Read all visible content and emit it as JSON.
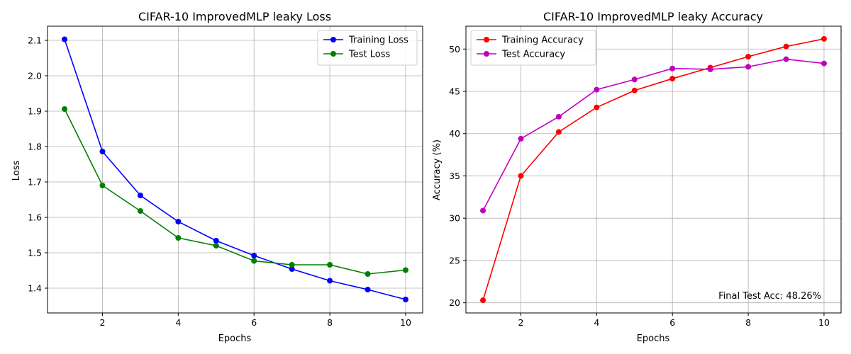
{
  "chart_data": [
    {
      "type": "line",
      "title": "CIFAR-10 ImprovedMLP leaky Loss",
      "xlabel": "Epochs",
      "ylabel": "Loss",
      "x": [
        1,
        2,
        3,
        4,
        5,
        6,
        7,
        8,
        9,
        10
      ],
      "xlim": [
        0.55,
        10.45
      ],
      "ylim": [
        1.33,
        2.14
      ],
      "xticks": [
        2,
        4,
        6,
        8,
        10
      ],
      "yticks": [
        1.4,
        1.5,
        1.6,
        1.7,
        1.8,
        1.9,
        2.0,
        2.1
      ],
      "xtick_labels": [
        "2",
        "4",
        "6",
        "8",
        "10"
      ],
      "ytick_labels": [
        "1.4",
        "1.5",
        "1.6",
        "1.7",
        "1.8",
        "1.9",
        "2.0",
        "2.1"
      ],
      "grid": true,
      "legend_position": "top-right",
      "series": [
        {
          "name": "Training Loss",
          "color": "#0000ff",
          "values": [
            2.103,
            1.786,
            1.662,
            1.588,
            1.534,
            1.492,
            1.454,
            1.421,
            1.396,
            1.368
          ]
        },
        {
          "name": "Test Loss",
          "color": "#008000",
          "values": [
            1.906,
            1.69,
            1.618,
            1.542,
            1.52,
            1.477,
            1.466,
            1.466,
            1.44,
            1.451
          ]
        }
      ],
      "annotation": ""
    },
    {
      "type": "line",
      "title": "CIFAR-10 ImprovedMLP leaky Accuracy",
      "xlabel": "Epochs",
      "ylabel": "Accuracy (%)",
      "x": [
        1,
        2,
        3,
        4,
        5,
        6,
        7,
        8,
        9,
        10
      ],
      "xlim": [
        0.55,
        10.45
      ],
      "ylim": [
        18.8,
        52.7
      ],
      "xticks": [
        2,
        4,
        6,
        8,
        10
      ],
      "yticks": [
        20,
        25,
        30,
        35,
        40,
        45,
        50
      ],
      "xtick_labels": [
        "2",
        "4",
        "6",
        "8",
        "10"
      ],
      "ytick_labels": [
        "20",
        "25",
        "30",
        "35",
        "40",
        "45",
        "50"
      ],
      "grid": true,
      "legend_position": "top-left",
      "series": [
        {
          "name": "Training Accuracy",
          "color": "#ff0000",
          "values": [
            20.3,
            35.0,
            40.2,
            43.1,
            45.1,
            46.5,
            47.8,
            49.1,
            50.3,
            51.2
          ]
        },
        {
          "name": "Test Accuracy",
          "color": "#bf00bf",
          "values": [
            30.9,
            39.4,
            42.0,
            45.2,
            46.4,
            47.7,
            47.6,
            47.9,
            48.8,
            48.3
          ]
        }
      ],
      "annotation": "Final Test Acc: 48.26%"
    }
  ]
}
